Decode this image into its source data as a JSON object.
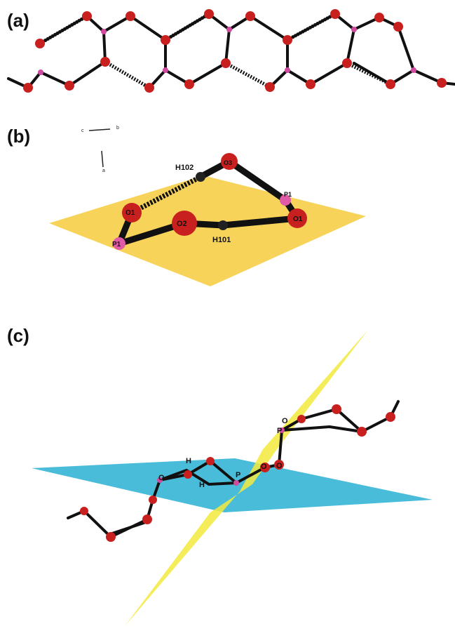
{
  "panels": [
    {
      "label": "(a)"
    },
    {
      "label": "(b)",
      "axis_labels": [
        "c",
        "b",
        "a"
      ],
      "atom_labels": [
        "H102",
        "O3",
        "P1",
        "O1",
        "O1",
        "O2",
        "H101",
        "P1"
      ]
    },
    {
      "label": "(c)",
      "atom_labels": [
        "H",
        "O",
        "H",
        "P",
        "O",
        "P",
        "O",
        "O"
      ]
    }
  ]
}
